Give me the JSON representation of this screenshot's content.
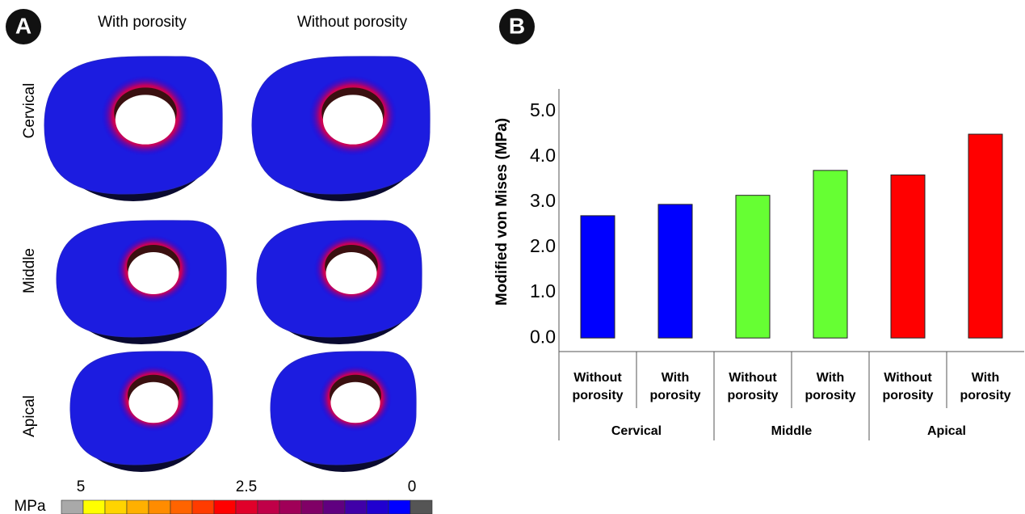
{
  "panel_a": {
    "label": "A",
    "columns": [
      "With porosity",
      "Without porosity"
    ],
    "rows": [
      "Cervical",
      "Middle",
      "Apical"
    ],
    "colorbar": {
      "unit": "MPa",
      "ticks": [
        5,
        2.5,
        0
      ],
      "colors": [
        "#a9a9a9",
        "#ffff00",
        "#ffd400",
        "#ffb000",
        "#ff8c00",
        "#ff6400",
        "#ff3c00",
        "#ff0000",
        "#e0002a",
        "#c00048",
        "#a00058",
        "#800066",
        "#600080",
        "#4000a8",
        "#2000d0",
        "#0000ff",
        "#555555"
      ]
    }
  },
  "chart_data": {
    "type": "bar",
    "panel_label": "B",
    "y_label": "Modified von Mises (MPa)",
    "categories": [
      "Without porosity",
      "With porosity",
      "Without porosity",
      "With porosity",
      "Without porosity",
      "With porosity"
    ],
    "groups": [
      "Cervical",
      "Middle",
      "Apical"
    ],
    "values": [
      2.7,
      2.95,
      3.15,
      3.7,
      3.6,
      4.5
    ],
    "colors": [
      "#0000ff",
      "#0000ff",
      "#66ff33",
      "#66ff33",
      "#ff0000",
      "#ff0000"
    ],
    "ylim": [
      -0.3,
      5.5
    ],
    "yticks": [
      {
        "value": 0,
        "label": "0.0"
      },
      {
        "value": 1,
        "label": "1.0"
      },
      {
        "value": 2,
        "label": "2.0"
      },
      {
        "value": 3,
        "label": "3.0"
      },
      {
        "value": 4,
        "label": "4.0"
      },
      {
        "value": 5,
        "label": "5.0"
      }
    ]
  }
}
